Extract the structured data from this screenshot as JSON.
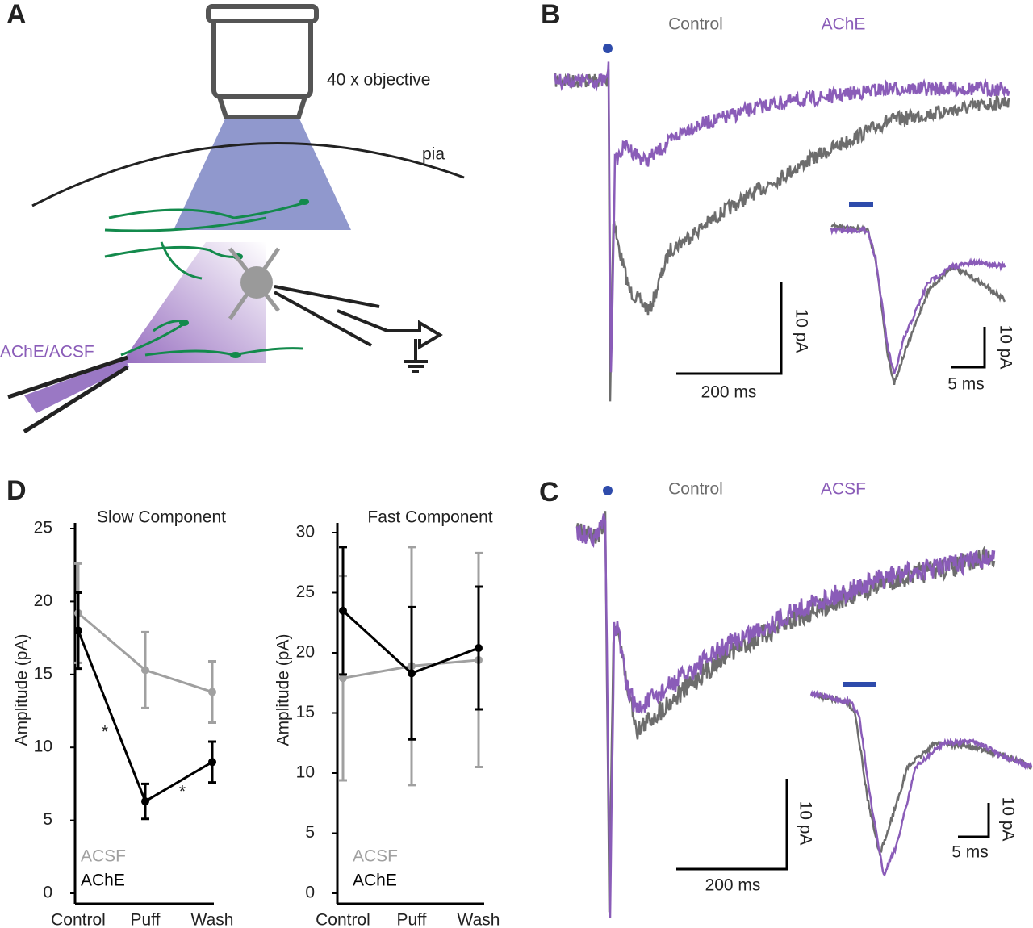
{
  "panel_labels": [
    "A",
    "B",
    "C",
    "D"
  ],
  "diagram": {
    "objective": "40 x objective",
    "pia": "pia",
    "puff": "AChE/ACSF"
  },
  "traces": [
    {
      "legend": [
        "Control",
        "AChE"
      ],
      "scale_y": "10 pA",
      "scale_x": "200 ms",
      "inset_y": "10 pA",
      "inset_x": "5 ms"
    },
    {
      "legend": [
        "Control",
        "ACSF"
      ],
      "scale_y": "10 pA",
      "scale_x": "200 ms",
      "inset_y": "10 pA",
      "inset_x": "5 ms"
    }
  ],
  "chart_data": [
    {
      "type": "line",
      "title": "Slow Component",
      "ylabel": "Amplitude (pA)",
      "categories": [
        "Control",
        "Puff",
        "Wash"
      ],
      "ylim": [
        0,
        25
      ],
      "yticks": [
        0,
        5,
        10,
        15,
        20,
        25
      ],
      "series": [
        {
          "name": "ACSF",
          "color": "#a0a0a0",
          "values": [
            19.2,
            15.3,
            13.8
          ],
          "errors": [
            3.4,
            2.6,
            2.1
          ]
        },
        {
          "name": "AChE",
          "color": "#000000",
          "values": [
            18,
            6.3,
            9
          ],
          "errors": [
            2.6,
            1.2,
            1.4
          ]
        }
      ],
      "annotations": [
        "*",
        "*"
      ]
    },
    {
      "type": "line",
      "title": "Fast Component",
      "ylabel": "Amplitude (pA)",
      "categories": [
        "Control",
        "Puff",
        "Wash"
      ],
      "ylim": [
        0,
        30
      ],
      "yticks": [
        0,
        5,
        10,
        15,
        20,
        25,
        30
      ],
      "series": [
        {
          "name": "ACSF",
          "color": "#a0a0a0",
          "values": [
            17.9,
            18.9,
            19.4
          ],
          "errors": [
            8.5,
            9.9,
            8.9
          ]
        },
        {
          "name": "AChE",
          "color": "#000000",
          "values": [
            23.5,
            18.3,
            20.4
          ],
          "errors": [
            5.3,
            5.5,
            5.1
          ]
        }
      ]
    }
  ]
}
